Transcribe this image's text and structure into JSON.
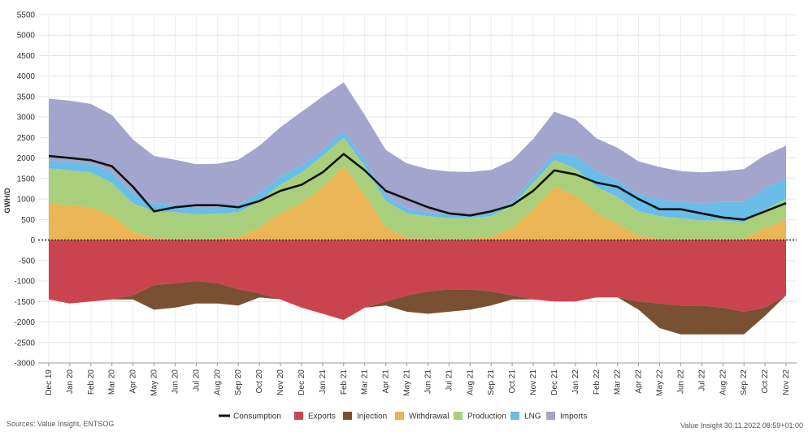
{
  "chart_data": {
    "type": "area",
    "ylabel": "GWH/D",
    "yticks": [
      5500,
      5000,
      4500,
      4000,
      3500,
      3000,
      2500,
      2000,
      1500,
      1000,
      500,
      0,
      -500,
      -1000,
      -1500,
      -2000,
      -2500,
      -3000
    ],
    "ylim": [
      -3000,
      5500
    ],
    "categories": [
      "Dec 19",
      "Jan 20",
      "Feb 20",
      "Mar 20",
      "Apr 20",
      "May 20",
      "Jun 20",
      "Jul 20",
      "Aug 20",
      "Sep 20",
      "Oct 20",
      "Nov 20",
      "Dec 20",
      "Jan 21",
      "Feb 21",
      "Mar 21",
      "Apr 21",
      "May 21",
      "Jun 21",
      "Jul 21",
      "Aug 21",
      "Sep 21",
      "Oct 21",
      "Nov 21",
      "Dec 21",
      "Jan 22",
      "Feb 22",
      "Mar 22",
      "Apr 22",
      "May 22",
      "Jun 22",
      "Jul 22",
      "Aug 22",
      "Sep 22",
      "Oct 22",
      "Nov 22"
    ],
    "legend_position": "bottom",
    "grid": true,
    "series": [
      {
        "name": "Consumption",
        "kind": "line",
        "color": "#111111",
        "values": [
          2050,
          2000,
          1950,
          1800,
          1300,
          700,
          800,
          850,
          850,
          800,
          950,
          1200,
          1350,
          1650,
          2100,
          1700,
          1200,
          1000,
          800,
          650,
          600,
          700,
          850,
          1200,
          1700,
          1600,
          1400,
          1300,
          1000,
          750,
          750,
          650,
          550,
          500,
          700,
          900
        ]
      },
      {
        "name": "Exports",
        "kind": "area",
        "color": "#c9444e",
        "values": [
          -1450,
          -1550,
          -1500,
          -1450,
          -1350,
          -1100,
          -1050,
          -1000,
          -1050,
          -1200,
          -1300,
          -1450,
          -1650,
          -1800,
          -1950,
          -1650,
          -1500,
          -1350,
          -1250,
          -1200,
          -1200,
          -1250,
          -1350,
          -1450,
          -1500,
          -1500,
          -1400,
          -1400,
          -1500,
          -1550,
          -1600,
          -1600,
          -1650,
          -1750,
          -1650,
          -1350
        ]
      },
      {
        "name": "Injection",
        "kind": "area",
        "color": "#7a5032",
        "values": [
          0,
          0,
          0,
          0,
          -100,
          -600,
          -600,
          -550,
          -500,
          -400,
          -100,
          0,
          0,
          0,
          0,
          0,
          -100,
          -400,
          -550,
          -550,
          -500,
          -350,
          -100,
          0,
          0,
          0,
          0,
          0,
          -200,
          -600,
          -700,
          -700,
          -650,
          -550,
          -200,
          0
        ]
      },
      {
        "name": "Withdrawal",
        "kind": "area",
        "color": "#eab554",
        "values": [
          900,
          850,
          800,
          600,
          200,
          50,
          30,
          30,
          40,
          80,
          300,
          650,
          900,
          1300,
          1800,
          1100,
          300,
          50,
          30,
          30,
          30,
          80,
          300,
          750,
          1300,
          1100,
          650,
          400,
          100,
          30,
          30,
          30,
          30,
          30,
          300,
          500
        ]
      },
      {
        "name": "Production",
        "kind": "area",
        "color": "#a9cf7c",
        "values": [
          850,
          850,
          850,
          800,
          700,
          650,
          650,
          600,
          600,
          600,
          650,
          700,
          750,
          750,
          700,
          700,
          650,
          600,
          550,
          500,
          500,
          500,
          550,
          650,
          650,
          650,
          650,
          650,
          600,
          550,
          500,
          450,
          450,
          400,
          450,
          500
        ]
      },
      {
        "name": "LNG",
        "kind": "area",
        "color": "#69bde8",
        "values": [
          200,
          200,
          220,
          250,
          250,
          200,
          180,
          170,
          170,
          180,
          200,
          200,
          180,
          150,
          150,
          150,
          150,
          120,
          100,
          90,
          80,
          80,
          100,
          120,
          180,
          300,
          380,
          400,
          420,
          400,
          400,
          420,
          450,
          500,
          520,
          500
        ]
      },
      {
        "name": "Imports",
        "kind": "area",
        "color": "#a3a5cc",
        "values": [
          1500,
          1500,
          1450,
          1400,
          1300,
          1150,
          1100,
          1050,
          1050,
          1100,
          1150,
          1200,
          1300,
          1300,
          1200,
          1100,
          1100,
          1100,
          1050,
          1050,
          1050,
          1050,
          1000,
          950,
          1000,
          900,
          800,
          800,
          800,
          800,
          750,
          750,
          750,
          800,
          800,
          800
        ]
      }
    ]
  },
  "footer": {
    "source": "Sources: Value Insight, ENTSOG",
    "stamp": "Value Insight 30.11.2022 08:59+01:00"
  }
}
